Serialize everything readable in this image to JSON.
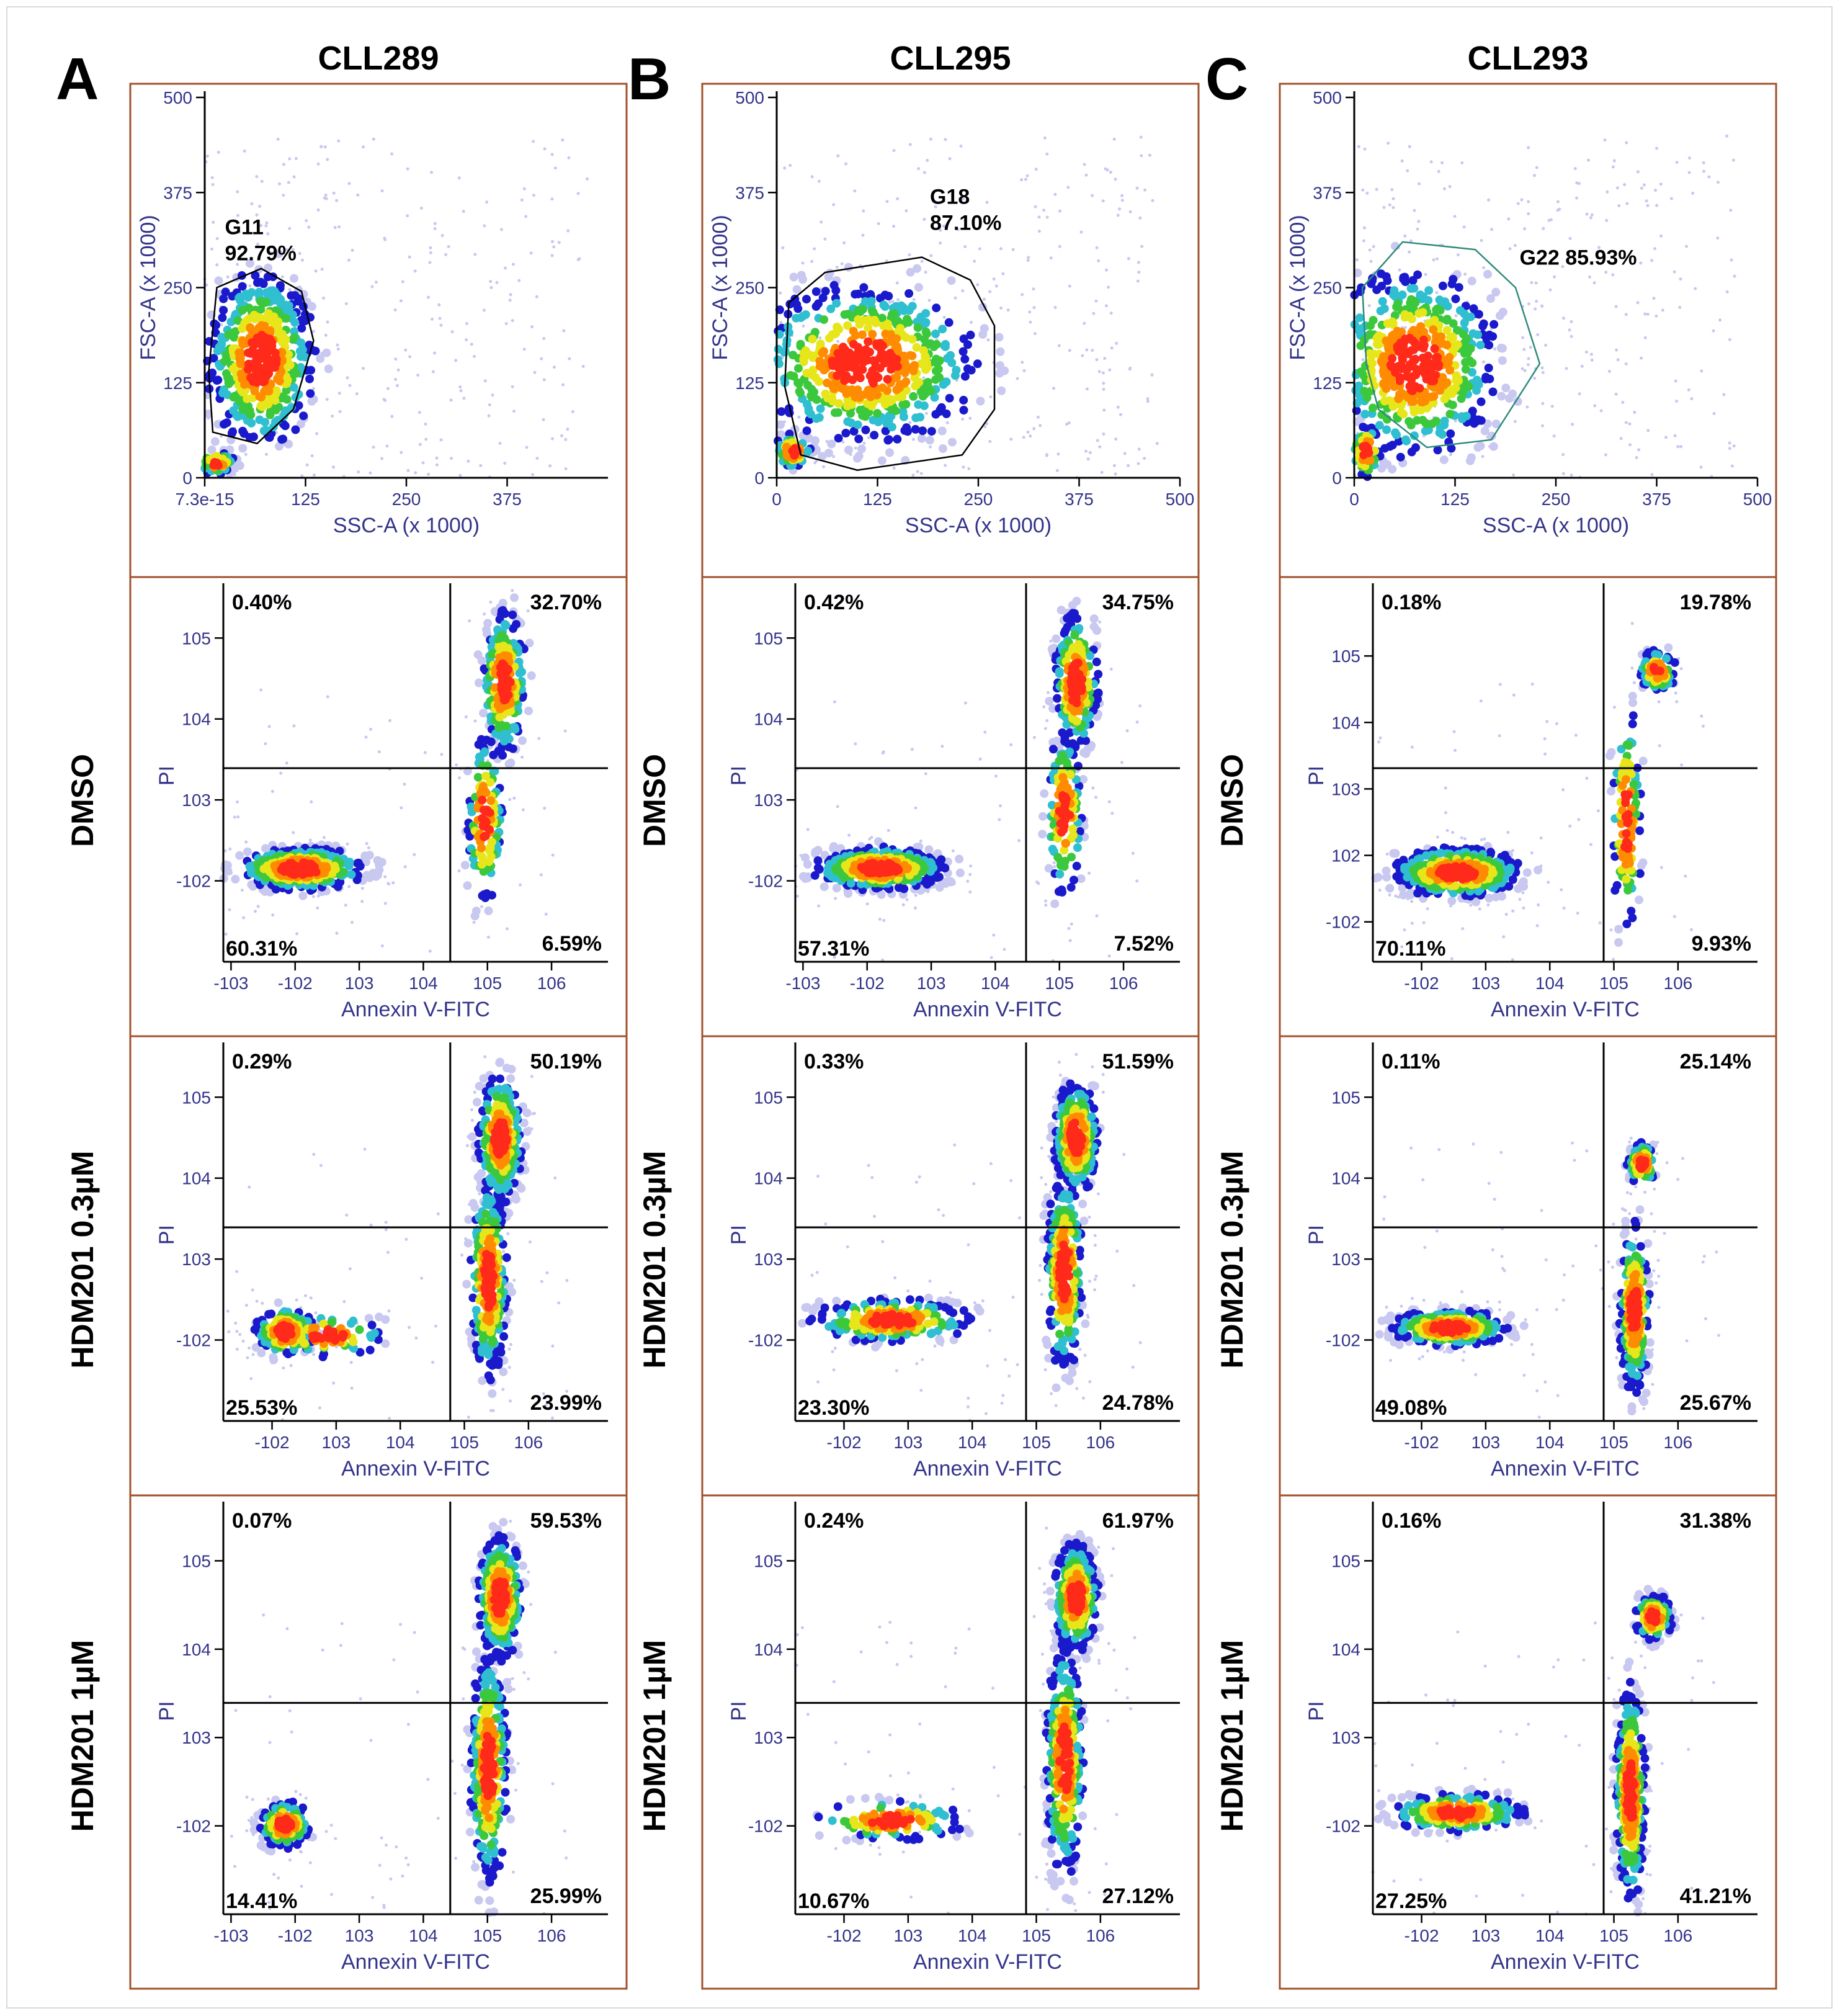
{
  "colors": {
    "panel_border": "#a0522d",
    "axis_text": "#33338a",
    "density_scale": [
      "#c8c8f0",
      "#1a1acc",
      "#2fbfd0",
      "#3cc83c",
      "#e6e61a",
      "#ff8c00",
      "#ff2a1a"
    ]
  },
  "columns": [
    {
      "letter": "A",
      "sample": "CLL289"
    },
    {
      "letter": "B",
      "sample": "CLL295"
    },
    {
      "letter": "C",
      "sample": "CLL293"
    }
  ],
  "row_labels": [
    "DMSO",
    "HDM201 0.3µM",
    "HDM201 1µM"
  ],
  "chart_data": [
    {
      "type": "scatter",
      "sample": "CLL289",
      "plot": "gating",
      "xlabel": "SSC-A (x 1000)",
      "ylabel": "FSC-A (x 1000)",
      "xticks": [
        "7.3e-15",
        "125",
        "250",
        "375"
      ],
      "yticks": [
        "0",
        "125",
        "250",
        "375",
        "500"
      ],
      "xlim": [
        0,
        500
      ],
      "ylim": [
        0,
        500
      ],
      "gate": {
        "name": "G11",
        "percent": "92.79%",
        "polygon": [
          [
            10,
            60
          ],
          [
            65,
            45
          ],
          [
            110,
            90
          ],
          [
            135,
            180
          ],
          [
            120,
            245
          ],
          [
            70,
            275
          ],
          [
            15,
            250
          ],
          [
            5,
            140
          ]
        ]
      },
      "clusters": [
        {
          "x": 70,
          "y": 155,
          "sx": 35,
          "sy": 60,
          "n": 520
        },
        {
          "x": 15,
          "y": 20,
          "sx": 12,
          "sy": 8,
          "n": 60
        }
      ]
    },
    {
      "type": "scatter",
      "sample": "CLL295",
      "plot": "gating",
      "xlabel": "SSC-A (x 1000)",
      "ylabel": "FSC-A (x 1000)",
      "xticks": [
        "0",
        "125",
        "250",
        "375",
        "500"
      ],
      "yticks": [
        "0",
        "125",
        "250",
        "375",
        "500"
      ],
      "xlim": [
        0,
        500
      ],
      "ylim": [
        0,
        500
      ],
      "gate": {
        "name": "G18",
        "percent": "87.10%",
        "polygon": [
          [
            30,
            30
          ],
          [
            100,
            10
          ],
          [
            230,
            30
          ],
          [
            270,
            90
          ],
          [
            270,
            200
          ],
          [
            240,
            260
          ],
          [
            180,
            290
          ],
          [
            60,
            270
          ],
          [
            15,
            230
          ],
          [
            10,
            120
          ]
        ]
      },
      "clusters": [
        {
          "x": 110,
          "y": 150,
          "sx": 75,
          "sy": 55,
          "n": 620
        },
        {
          "x": 20,
          "y": 35,
          "sx": 12,
          "sy": 12,
          "n": 60
        }
      ]
    },
    {
      "type": "scatter",
      "sample": "CLL293",
      "plot": "gating",
      "xlabel": "SSC-A (x 1000)",
      "ylabel": "FSC-A (x 1000)",
      "xticks": [
        "0",
        "125",
        "250",
        "375",
        "500"
      ],
      "yticks": [
        "0",
        "125",
        "250",
        "375",
        "500"
      ],
      "xlim": [
        0,
        500
      ],
      "ylim": [
        0,
        500
      ],
      "gate": {
        "name": "G22",
        "percent": "85.93%",
        "polygon": [
          [
            30,
            90
          ],
          [
            90,
            40
          ],
          [
            170,
            50
          ],
          [
            230,
            150
          ],
          [
            200,
            250
          ],
          [
            150,
            300
          ],
          [
            60,
            310
          ],
          [
            10,
            250
          ],
          [
            15,
            150
          ]
        ]
      },
      "clusters": [
        {
          "x": 75,
          "y": 150,
          "sx": 55,
          "sy": 65,
          "n": 620
        },
        {
          "x": 15,
          "y": 35,
          "sx": 10,
          "sy": 20,
          "n": 60
        }
      ]
    },
    {
      "type": "scatter",
      "sample": "CLL289",
      "treatment": "DMSO",
      "plot": "annexin",
      "xlabel": "Annexin V-FITC",
      "ylabel": "PI",
      "xticks": [
        "-10^3",
        "-10^2",
        "10^3",
        "10^4",
        "10^5",
        "10^6"
      ],
      "yticks": [
        "-10^2",
        "10^3",
        "10^4",
        "10^5"
      ],
      "xlim": [
        0,
        100
      ],
      "ylim": [
        0,
        100
      ],
      "quadrant": {
        "x": 59,
        "y": 52
      },
      "quadrants": {
        "UL": "0.40%",
        "UR": "32.70%",
        "LL": "60.31%",
        "LR": "6.59%"
      },
      "clusters": [
        {
          "x": 20,
          "y": 25,
          "sx": 9,
          "sy": 3,
          "n": 420
        },
        {
          "x": 73,
          "y": 75,
          "sx": 3,
          "sy": 10,
          "n": 240
        },
        {
          "x": 68,
          "y": 38,
          "sx": 2.5,
          "sy": 12,
          "n": 140
        }
      ]
    },
    {
      "type": "scatter",
      "sample": "CLL295",
      "treatment": "DMSO",
      "plot": "annexin",
      "xlabel": "Annexin V-FITC",
      "ylabel": "PI",
      "xticks": [
        "-10^3",
        "-10^2",
        "10^3",
        "10^4",
        "10^5",
        "10^6"
      ],
      "yticks": [
        "-10^2",
        "10^3",
        "10^4",
        "10^5"
      ],
      "xlim": [
        0,
        100
      ],
      "ylim": [
        0,
        100
      ],
      "quadrant": {
        "x": 60,
        "y": 52
      },
      "quadrants": {
        "UL": "0.42%",
        "UR": "34.75%",
        "LL": "57.31%",
        "LR": "7.52%"
      },
      "clusters": [
        {
          "x": 22,
          "y": 25,
          "sx": 9,
          "sy": 3,
          "n": 420
        },
        {
          "x": 73,
          "y": 75,
          "sx": 3,
          "sy": 10,
          "n": 240
        },
        {
          "x": 70,
          "y": 40,
          "sx": 2.5,
          "sy": 12,
          "n": 140
        }
      ]
    },
    {
      "type": "scatter",
      "sample": "CLL293",
      "treatment": "DMSO",
      "plot": "annexin",
      "xlabel": "Annexin V-FITC",
      "ylabel": "PI",
      "xticks": [
        "-10^2",
        "10^3",
        "10^4",
        "10^5",
        "10^6"
      ],
      "yticks": [
        "-10^2",
        "10^2",
        "10^3",
        "10^4",
        "10^5"
      ],
      "xlim": [
        0,
        100
      ],
      "ylim": [
        0,
        100
      ],
      "quadrant": {
        "x": 60,
        "y": 52
      },
      "quadrants": {
        "UL": "0.18%",
        "UR": "19.78%",
        "LL": "70.11%",
        "LR": "9.93%"
      },
      "clusters": [
        {
          "x": 22,
          "y": 24,
          "sx": 9,
          "sy": 3.5,
          "n": 450
        },
        {
          "x": 74,
          "y": 78,
          "sx": 2.5,
          "sy": 3,
          "n": 90
        },
        {
          "x": 66,
          "y": 38,
          "sx": 2,
          "sy": 16,
          "n": 120
        }
      ]
    },
    {
      "type": "scatter",
      "sample": "CLL289",
      "treatment": "HDM201 0.3µM",
      "plot": "annexin",
      "xlabel": "Annexin V-FITC",
      "ylabel": "PI",
      "xticks": [
        "-10^2",
        "10^3",
        "10^4",
        "10^5",
        "10^6"
      ],
      "yticks": [
        "-10^2",
        "10^3",
        "10^4",
        "10^5"
      ],
      "xlim": [
        0,
        100
      ],
      "ylim": [
        0,
        100
      ],
      "quadrant": {
        "x": 59,
        "y": 52
      },
      "quadrants": {
        "UL": "0.29%",
        "UR": "50.19%",
        "LL": "25.53%",
        "LR": "23.99%"
      },
      "clusters": [
        {
          "x": 16,
          "y": 24,
          "sx": 4,
          "sy": 3.5,
          "n": 180
        },
        {
          "x": 27,
          "y": 23,
          "sx": 8,
          "sy": 3,
          "n": 100
        },
        {
          "x": 72,
          "y": 76,
          "sx": 3,
          "sy": 9,
          "n": 300
        },
        {
          "x": 69,
          "y": 38,
          "sx": 2.5,
          "sy": 14,
          "n": 300
        }
      ]
    },
    {
      "type": "scatter",
      "sample": "CLL295",
      "treatment": "HDM201 0.3µM",
      "plot": "annexin",
      "xlabel": "Annexin V-FITC",
      "ylabel": "PI",
      "xticks": [
        "-10^2",
        "10^3",
        "10^4",
        "10^5",
        "10^6"
      ],
      "yticks": [
        "-10^2",
        "10^3",
        "10^4",
        "10^5"
      ],
      "xlim": [
        0,
        100
      ],
      "ylim": [
        0,
        100
      ],
      "quadrant": {
        "x": 60,
        "y": 52
      },
      "quadrants": {
        "UL": "0.33%",
        "UR": "51.59%",
        "LL": "23.30%",
        "LR": "24.78%"
      },
      "clusters": [
        {
          "x": 25,
          "y": 27,
          "sx": 11,
          "sy": 3,
          "n": 230
        },
        {
          "x": 73,
          "y": 76,
          "sx": 3,
          "sy": 8,
          "n": 300
        },
        {
          "x": 70,
          "y": 40,
          "sx": 2.5,
          "sy": 14,
          "n": 300
        }
      ]
    },
    {
      "type": "scatter",
      "sample": "CLL293",
      "treatment": "HDM201 0.3µM",
      "plot": "annexin",
      "xlabel": "Annexin V-FITC",
      "ylabel": "PI",
      "xticks": [
        "-10^2",
        "10^3",
        "10^4",
        "10^5",
        "10^6"
      ],
      "yticks": [
        "-10^2",
        "10^3",
        "10^4",
        "10^5"
      ],
      "xlim": [
        0,
        100
      ],
      "ylim": [
        0,
        100
      ],
      "quadrant": {
        "x": 60,
        "y": 52
      },
      "quadrants": {
        "UL": "0.11%",
        "UR": "25.14%",
        "LL": "49.08%",
        "LR": "25.67%"
      },
      "clusters": [
        {
          "x": 20,
          "y": 25,
          "sx": 8,
          "sy": 2.5,
          "n": 330
        },
        {
          "x": 70,
          "y": 69,
          "sx": 2,
          "sy": 3,
          "n": 90
        },
        {
          "x": 68,
          "y": 30,
          "sx": 2,
          "sy": 12,
          "n": 260
        }
      ]
    },
    {
      "type": "scatter",
      "sample": "CLL289",
      "treatment": "HDM201 1µM",
      "plot": "annexin",
      "xlabel": "Annexin V-FITC",
      "ylabel": "PI",
      "xticks": [
        "-10^3",
        "-10^2",
        "10^3",
        "10^4",
        "10^5",
        "10^6"
      ],
      "yticks": [
        "-10^2",
        "10^3",
        "10^4",
        "10^5"
      ],
      "xlim": [
        0,
        100
      ],
      "ylim": [
        0,
        100
      ],
      "quadrant": {
        "x": 59,
        "y": 52
      },
      "quadrants": {
        "UL": "0.07%",
        "UR": "59.53%",
        "LL": "14.41%",
        "LR": "25.99%"
      },
      "clusters": [
        {
          "x": 16,
          "y": 22,
          "sx": 3.5,
          "sy": 3,
          "n": 150
        },
        {
          "x": 72,
          "y": 78,
          "sx": 3,
          "sy": 8,
          "n": 320
        },
        {
          "x": 69,
          "y": 36,
          "sx": 2.5,
          "sy": 15,
          "n": 320
        }
      ]
    },
    {
      "type": "scatter",
      "sample": "CLL295",
      "treatment": "HDM201 1µM",
      "plot": "annexin",
      "xlabel": "Annexin V-FITC",
      "ylabel": "PI",
      "xticks": [
        "-10^2",
        "10^3",
        "10^4",
        "10^5",
        "10^6"
      ],
      "yticks": [
        "-10^2",
        "10^3",
        "10^4",
        "10^5"
      ],
      "xlim": [
        0,
        100
      ],
      "ylim": [
        0,
        100
      ],
      "quadrant": {
        "x": 60,
        "y": 52
      },
      "quadrants": {
        "UL": "0.24%",
        "UR": "61.97%",
        "LL": "10.67%",
        "LR": "27.12%"
      },
      "clusters": [
        {
          "x": 25,
          "y": 23,
          "sx": 10,
          "sy": 2.5,
          "n": 120
        },
        {
          "x": 73,
          "y": 78,
          "sx": 3,
          "sy": 7,
          "n": 320
        },
        {
          "x": 70,
          "y": 38,
          "sx": 2.5,
          "sy": 15,
          "n": 330
        }
      ]
    },
    {
      "type": "scatter",
      "sample": "CLL293",
      "treatment": "HDM201 1µM",
      "plot": "annexin",
      "xlabel": "Annexin V-FITC",
      "ylabel": "PI",
      "xticks": [
        "-10^2",
        "10^3",
        "10^4",
        "10^5",
        "10^6"
      ],
      "yticks": [
        "-10^2",
        "10^3",
        "10^4",
        "10^5"
      ],
      "xlim": [
        0,
        100
      ],
      "ylim": [
        0,
        100
      ],
      "quadrant": {
        "x": 60,
        "y": 52
      },
      "quadrants": {
        "UL": "0.16%",
        "UR": "31.38%",
        "LL": "27.25%",
        "LR": "41.21%"
      },
      "clusters": [
        {
          "x": 22,
          "y": 25,
          "sx": 9,
          "sy": 2.5,
          "n": 220
        },
        {
          "x": 73,
          "y": 73,
          "sx": 2.5,
          "sy": 3,
          "n": 120
        },
        {
          "x": 67,
          "y": 30,
          "sx": 2,
          "sy": 14,
          "n": 360
        }
      ]
    }
  ]
}
